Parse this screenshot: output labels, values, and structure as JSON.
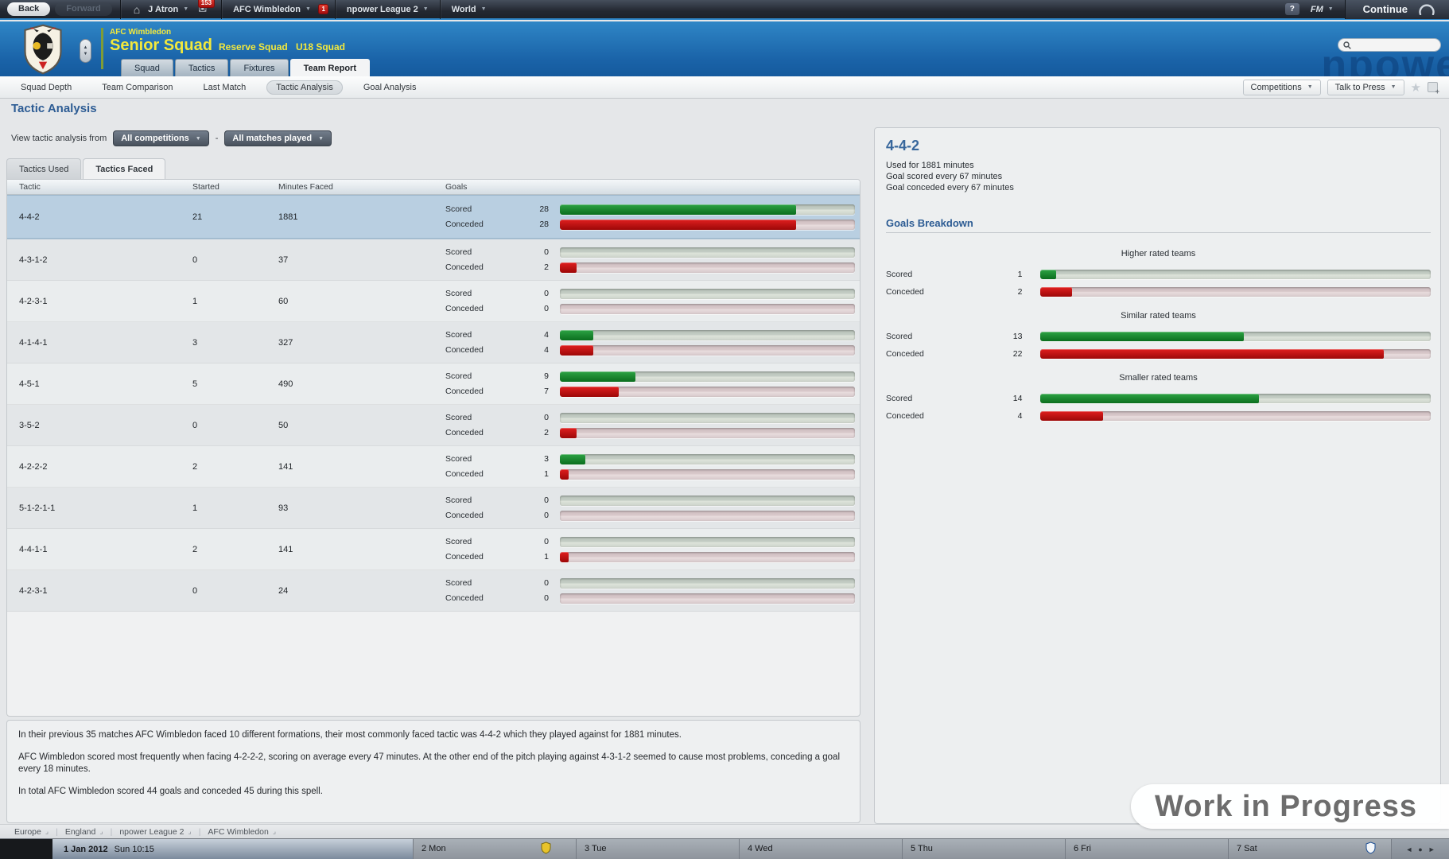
{
  "topbar": {
    "back_label": "Back",
    "forward_label": "Forward",
    "menus": [
      {
        "label": "J Atron"
      },
      {
        "label": "AFC Wimbledon"
      },
      {
        "label": "npower League 2"
      },
      {
        "label": "World"
      }
    ],
    "mail_badge": "153",
    "news_badge": "1",
    "help_label": "?",
    "fm_label": "FM",
    "continue_label": "Continue"
  },
  "header": {
    "club_name": "AFC Wimbledon",
    "squad_title": "Senior Squad",
    "link_reserve": "Reserve Squad",
    "link_u18": "U18 Squad",
    "tabs": [
      "Squad",
      "Tactics",
      "Fixtures",
      "Team Report"
    ],
    "active_tab": "Team Report",
    "brand_watermark": "npowe"
  },
  "subnav": {
    "items": [
      "Squad Depth",
      "Team Comparison",
      "Last Match",
      "Tactic Analysis",
      "Goal Analysis"
    ],
    "active": "Tactic Analysis",
    "competitions_label": "Competitions",
    "talk_to_press_label": "Talk to Press"
  },
  "page": {
    "title": "Tactic Analysis",
    "filter_label": "View tactic analysis from",
    "filter_competitions": "All competitions",
    "filter_separator": "-",
    "filter_matches": "All matches played",
    "tabs": [
      "Tactics Used",
      "Tactics Faced"
    ],
    "active_tab": "Tactics Faced"
  },
  "table": {
    "columns": [
      "Tactic",
      "Started",
      "Minutes Faced",
      "Goals"
    ],
    "scored_label": "Scored",
    "conceded_label": "Conceded",
    "bar_max": 35,
    "rows": [
      {
        "tactic": "4-4-2",
        "started": "21",
        "minutes": "1881",
        "scored": 28,
        "conceded": 28
      },
      {
        "tactic": "4-3-1-2",
        "started": "0",
        "minutes": "37",
        "scored": 0,
        "conceded": 2
      },
      {
        "tactic": "4-2-3-1",
        "started": "1",
        "minutes": "60",
        "scored": 0,
        "conceded": 0
      },
      {
        "tactic": "4-1-4-1",
        "started": "3",
        "minutes": "327",
        "scored": 4,
        "conceded": 4
      },
      {
        "tactic": "4-5-1",
        "started": "5",
        "minutes": "490",
        "scored": 9,
        "conceded": 7
      },
      {
        "tactic": "3-5-2",
        "started": "0",
        "minutes": "50",
        "scored": 0,
        "conceded": 2
      },
      {
        "tactic": "4-2-2-2",
        "started": "2",
        "minutes": "141",
        "scored": 3,
        "conceded": 1
      },
      {
        "tactic": "5-1-2-1-1",
        "started": "1",
        "minutes": "93",
        "scored": 0,
        "conceded": 0
      },
      {
        "tactic": "4-4-1-1",
        "started": "2",
        "minutes": "141",
        "scored": 0,
        "conceded": 1
      },
      {
        "tactic": "4-2-3-1",
        "started": "0",
        "minutes": "24",
        "scored": 0,
        "conceded": 0
      }
    ],
    "selected_row_index": 0
  },
  "details": {
    "title": "4-4-2",
    "info_lines": [
      "Used for 1881 minutes",
      "Goal scored every 67 minutes",
      "Goal conceded every 67 minutes"
    ],
    "breakdown_title": "Goals Breakdown",
    "scored_label": "Scored",
    "conceded_label": "Conceded",
    "bar_max": 25,
    "groups": [
      {
        "label": "Higher rated teams",
        "scored": 1,
        "conceded": 2
      },
      {
        "label": "Similar rated teams",
        "scored": 13,
        "conceded": 22
      },
      {
        "label": "Smaller rated teams",
        "scored": 14,
        "conceded": 4
      }
    ]
  },
  "summary": {
    "paragraphs": [
      "In their previous 35 matches AFC Wimbledon faced 10 different formations, their most commonly faced tactic was 4-4-2 which they played against for 1881 minutes.",
      "AFC Wimbledon scored most frequently when facing 4-2-2-2, scoring on average every 47 minutes. At the other end of the pitch playing against 4-3-1-2 seemed to cause most problems, conceding a goal every 18 minutes.",
      "In total AFC Wimbledon scored 44 goals and conceded 45 during this spell."
    ]
  },
  "breadcrumbs": [
    "Europe",
    "England",
    "npower League 2",
    "AFC Wimbledon"
  ],
  "datebar": {
    "current_date": "1 Jan 2012",
    "current_time": "Sun 10:15",
    "days": [
      "2 Mon",
      "3 Tue",
      "4 Wed",
      "5 Thu",
      "6 Fri",
      "7 Sat"
    ]
  },
  "watermark": "Work in Progress",
  "icons": {
    "home": "⌂",
    "caret": "▼",
    "mail": "✉",
    "star": "★",
    "corner": "⌟",
    "spin_up": "▲",
    "spin_down": "▼",
    "nav_left": "◄",
    "nav_dot": "●",
    "nav_right": "►"
  },
  "colors": {
    "scored_green": "#0b6e1e",
    "conceded_red": "#9d0808",
    "header_blue": "#1a63a8",
    "accent_yellow": "#f3e93c"
  }
}
